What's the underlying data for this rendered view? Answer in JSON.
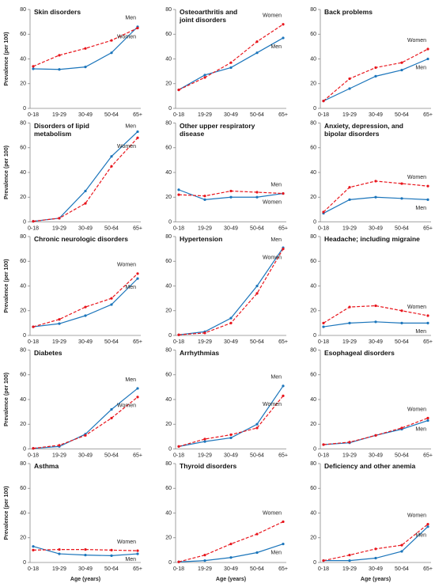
{
  "chart_data": [
    {
      "type": "line",
      "title": "Skin disorders",
      "ylabel": "Prevalence (per 100)",
      "categories": [
        "0-18",
        "19-29",
        "30-49",
        "50-64",
        "65+"
      ],
      "series": [
        {
          "name": "Men",
          "color": "#1b75bb",
          "linestyle": "solid",
          "values": [
            32,
            31.5,
            33.5,
            45,
            66
          ]
        },
        {
          "name": "Women",
          "color": "#e8141b",
          "linestyle": "dashed",
          "values": [
            34,
            43,
            48.5,
            55,
            65
          ]
        }
      ],
      "ylim": [
        0,
        80
      ],
      "yticks": [
        0,
        20,
        40,
        60,
        80
      ]
    },
    {
      "type": "line",
      "title": "Osteoarthritis and\njoint disorders",
      "categories": [
        "0-18",
        "19-29",
        "30-49",
        "50-64",
        "65+"
      ],
      "series": [
        {
          "name": "Men",
          "color": "#1b75bb",
          "linestyle": "solid",
          "values": [
            15,
            27,
            33,
            45,
            57
          ]
        },
        {
          "name": "Women",
          "color": "#e8141b",
          "linestyle": "dashed",
          "values": [
            15,
            25,
            37,
            54,
            68
          ]
        }
      ],
      "ylim": [
        0,
        80
      ],
      "yticks": [
        0,
        20,
        40,
        60,
        80
      ]
    },
    {
      "type": "line",
      "title": "Back problems",
      "categories": [
        "0-18",
        "19-29",
        "30-49",
        "50-64",
        "65+"
      ],
      "series": [
        {
          "name": "Men",
          "color": "#1b75bb",
          "linestyle": "solid",
          "values": [
            6,
            16,
            26,
            31,
            40
          ]
        },
        {
          "name": "Women",
          "color": "#e8141b",
          "linestyle": "dashed",
          "values": [
            6,
            24,
            33,
            37,
            48
          ]
        }
      ],
      "ylim": [
        0,
        80
      ],
      "yticks": [
        0,
        20,
        40,
        60,
        80
      ]
    },
    {
      "type": "line",
      "title": "Disorders of lipid\nmetabolism",
      "ylabel": "Prevalence (per 100)",
      "categories": [
        "0-18",
        "19-29",
        "30-49",
        "50-64",
        "65+"
      ],
      "series": [
        {
          "name": "Men",
          "color": "#1b75bb",
          "linestyle": "solid",
          "values": [
            0.5,
            3,
            25,
            53,
            73
          ]
        },
        {
          "name": "Women",
          "color": "#e8141b",
          "linestyle": "dashed",
          "values": [
            0.5,
            3,
            15,
            45,
            68
          ]
        }
      ],
      "ylim": [
        0,
        80
      ],
      "yticks": [
        0,
        20,
        40,
        60,
        80
      ]
    },
    {
      "type": "line",
      "title": "Other upper respiratory\ndisease",
      "categories": [
        "0-18",
        "19-29",
        "30-49",
        "50-64",
        "65+"
      ],
      "series": [
        {
          "name": "Men",
          "color": "#1b75bb",
          "linestyle": "solid",
          "values": [
            26,
            18,
            20,
            20,
            23
          ]
        },
        {
          "name": "Women",
          "color": "#e8141b",
          "linestyle": "dashed",
          "values": [
            22,
            21,
            25,
            24,
            23
          ]
        }
      ],
      "ylim": [
        0,
        80
      ],
      "yticks": [
        0,
        20,
        40,
        60,
        80
      ]
    },
    {
      "type": "line",
      "title": "Anxiety, depression, and\nbipolar disorders",
      "categories": [
        "0-18",
        "19-29",
        "30-49",
        "50-64",
        "65+"
      ],
      "series": [
        {
          "name": "Men",
          "color": "#1b75bb",
          "linestyle": "solid",
          "values": [
            7,
            18,
            20,
            19,
            18
          ]
        },
        {
          "name": "Women",
          "color": "#e8141b",
          "linestyle": "dashed",
          "values": [
            8,
            28,
            33,
            31,
            29
          ]
        }
      ],
      "ylim": [
        0,
        80
      ],
      "yticks": [
        0,
        20,
        40,
        60,
        80
      ]
    },
    {
      "type": "line",
      "title": "Chronic neurologic disorders",
      "ylabel": "Prevalence (per 100)",
      "categories": [
        "0-18",
        "19-29",
        "30-49",
        "50-64",
        "65+"
      ],
      "series": [
        {
          "name": "Men",
          "color": "#1b75bb",
          "linestyle": "solid",
          "values": [
            7,
            9.5,
            16,
            25,
            46
          ]
        },
        {
          "name": "Women",
          "color": "#e8141b",
          "linestyle": "dashed",
          "values": [
            7,
            13,
            23,
            30,
            50
          ]
        }
      ],
      "ylim": [
        0,
        80
      ],
      "yticks": [
        0,
        20,
        40,
        60,
        80
      ]
    },
    {
      "type": "line",
      "title": "Hypertension",
      "categories": [
        "0-18",
        "19-29",
        "30-49",
        "50-64",
        "65+"
      ],
      "series": [
        {
          "name": "Men",
          "color": "#1b75bb",
          "linestyle": "solid",
          "values": [
            0.5,
            3,
            14,
            40,
            71
          ]
        },
        {
          "name": "Women",
          "color": "#e8141b",
          "linestyle": "dashed",
          "values": [
            0.5,
            2,
            10,
            34,
            70
          ]
        }
      ],
      "ylim": [
        0,
        80
      ],
      "yticks": [
        0,
        20,
        40,
        60,
        80
      ]
    },
    {
      "type": "line",
      "title": "Headache; including migraine",
      "categories": [
        "0-18",
        "19-29",
        "30-49",
        "50-64",
        "65+"
      ],
      "series": [
        {
          "name": "Men",
          "color": "#1b75bb",
          "linestyle": "solid",
          "values": [
            7,
            10,
            11,
            10,
            10
          ]
        },
        {
          "name": "Women",
          "color": "#e8141b",
          "linestyle": "dashed",
          "values": [
            10,
            23,
            24,
            20,
            16
          ]
        }
      ],
      "ylim": [
        0,
        80
      ],
      "yticks": [
        0,
        20,
        40,
        60,
        80
      ]
    },
    {
      "type": "line",
      "title": "Diabetes",
      "ylabel": "Prevalence (per 100)",
      "categories": [
        "0-18",
        "19-29",
        "30-49",
        "50-64",
        "65+"
      ],
      "series": [
        {
          "name": "Men",
          "color": "#1b75bb",
          "linestyle": "solid",
          "values": [
            0.5,
            2,
            12,
            32,
            49
          ]
        },
        {
          "name": "Women",
          "color": "#e8141b",
          "linestyle": "dashed",
          "values": [
            0.5,
            3,
            11,
            25,
            42
          ]
        }
      ],
      "ylim": [
        0,
        80
      ],
      "yticks": [
        0,
        20,
        40,
        60,
        80
      ]
    },
    {
      "type": "line",
      "title": "Arrhythmias",
      "categories": [
        "0-18",
        "19-29",
        "30-49",
        "50-64",
        "65+"
      ],
      "series": [
        {
          "name": "Men",
          "color": "#1b75bb",
          "linestyle": "solid",
          "values": [
            2,
            6,
            9,
            20,
            51
          ]
        },
        {
          "name": "Women",
          "color": "#e8141b",
          "linestyle": "dashed",
          "values": [
            2,
            8,
            11.5,
            17,
            43
          ]
        }
      ],
      "ylim": [
        0,
        80
      ],
      "yticks": [
        0,
        20,
        40,
        60,
        80
      ]
    },
    {
      "type": "line",
      "title": "Esophageal disorders",
      "categories": [
        "0-18",
        "19-29",
        "30-49",
        "50-64",
        "65+"
      ],
      "series": [
        {
          "name": "Men",
          "color": "#1b75bb",
          "linestyle": "solid",
          "values": [
            3.5,
            5,
            11,
            16,
            23
          ]
        },
        {
          "name": "Women",
          "color": "#e8141b",
          "linestyle": "dashed",
          "values": [
            3.5,
            5.5,
            11,
            17,
            25
          ]
        }
      ],
      "ylim": [
        0,
        80
      ],
      "yticks": [
        0,
        20,
        40,
        60,
        80
      ]
    },
    {
      "type": "line",
      "title": "Asthma",
      "ylabel": "Prevalence (per 100)",
      "xlabel": "Age (years)",
      "categories": [
        "0-18",
        "19-29",
        "30-49",
        "50-64",
        "65+"
      ],
      "series": [
        {
          "name": "Men",
          "color": "#1b75bb",
          "linestyle": "solid",
          "values": [
            13,
            7,
            6,
            5.5,
            7
          ]
        },
        {
          "name": "Women",
          "color": "#e8141b",
          "linestyle": "dashed",
          "values": [
            10,
            10.5,
            10.5,
            10,
            9.5
          ]
        }
      ],
      "ylim": [
        0,
        80
      ],
      "yticks": [
        0,
        20,
        40,
        60,
        80
      ]
    },
    {
      "type": "line",
      "title": "Thyroid disorders",
      "xlabel": "Age (years)",
      "categories": [
        "0-18",
        "19-29",
        "30-49",
        "50-64",
        "65+"
      ],
      "series": [
        {
          "name": "Men",
          "color": "#1b75bb",
          "linestyle": "solid",
          "values": [
            0.5,
            1.5,
            4,
            8,
            15
          ]
        },
        {
          "name": "Women",
          "color": "#e8141b",
          "linestyle": "dashed",
          "values": [
            0.5,
            6,
            15,
            23,
            33
          ]
        }
      ],
      "ylim": [
        0,
        80
      ],
      "yticks": [
        0,
        20,
        40,
        60,
        80
      ]
    },
    {
      "type": "line",
      "title": "Deficiency and other anemia",
      "xlabel": "Age (years)",
      "categories": [
        "0-18",
        "19-29",
        "30-49",
        "50-64",
        "65+"
      ],
      "series": [
        {
          "name": "Men",
          "color": "#1b75bb",
          "linestyle": "solid",
          "values": [
            1.5,
            1.5,
            3.5,
            9,
            29
          ]
        },
        {
          "name": "Women",
          "color": "#e8141b",
          "linestyle": "dashed",
          "values": [
            1.5,
            6,
            11,
            14,
            31
          ]
        }
      ],
      "ylim": [
        0,
        80
      ],
      "yticks": [
        0,
        20,
        40,
        60,
        80
      ]
    }
  ]
}
